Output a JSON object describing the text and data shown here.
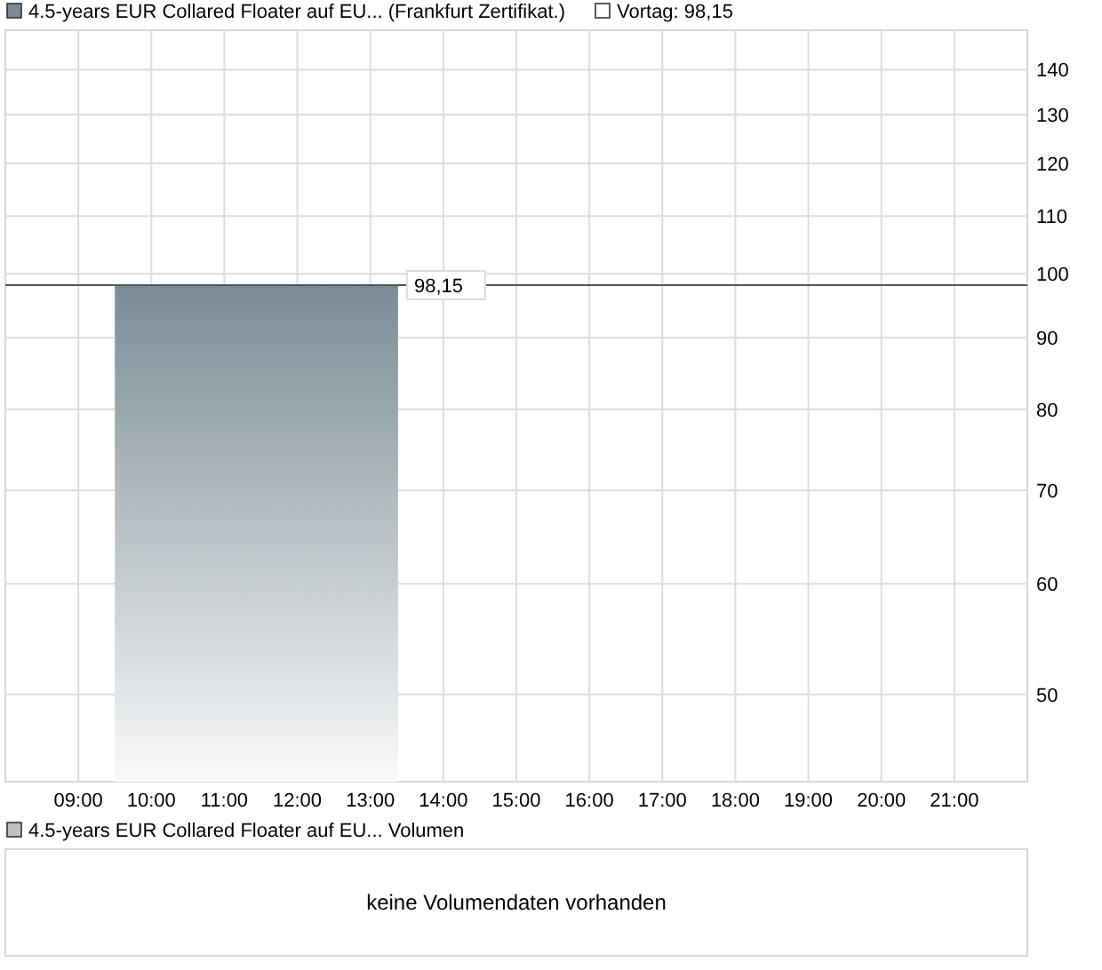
{
  "chart_data": [
    {
      "type": "area",
      "x": [
        9.5,
        13.38
      ],
      "series": [
        {
          "name": "4.5-years EUR Collared Floater auf EU... (Frankfurt Zertifikat.)",
          "color": "#7b8b95",
          "values": [
            98.15,
            98.15
          ]
        }
      ],
      "xlim": [
        8,
        22
      ],
      "xticks": [
        {
          "value": 9,
          "label": "09:00"
        },
        {
          "value": 10,
          "label": "10:00"
        },
        {
          "value": 11,
          "label": "11:00"
        },
        {
          "value": 12,
          "label": "12:00"
        },
        {
          "value": 13,
          "label": "13:00"
        },
        {
          "value": 14,
          "label": "14:00"
        },
        {
          "value": 15,
          "label": "15:00"
        },
        {
          "value": 16,
          "label": "16:00"
        },
        {
          "value": 17,
          "label": "17:00"
        },
        {
          "value": 18,
          "label": "18:00"
        },
        {
          "value": 19,
          "label": "19:00"
        },
        {
          "value": 20,
          "label": "20:00"
        },
        {
          "value": 21,
          "label": "21:00"
        }
      ],
      "ylim": [
        43.3,
        149.4
      ],
      "yticks": [
        50,
        60,
        70,
        80,
        90,
        100,
        110,
        120,
        130,
        140
      ],
      "log": true,
      "grid": true,
      "legend": "top left",
      "ref_lines": [
        {
          "axis": "y",
          "value": 98.15,
          "label": "98,15",
          "color": "#555555"
        }
      ],
      "annotations": [
        "Vortag: 98,15"
      ]
    },
    {
      "type": "other",
      "title": "4.5-years EUR Collared Floater auf EU... Volumen",
      "annotations": [
        "keine Volumendaten vorhanden"
      ]
    }
  ]
}
